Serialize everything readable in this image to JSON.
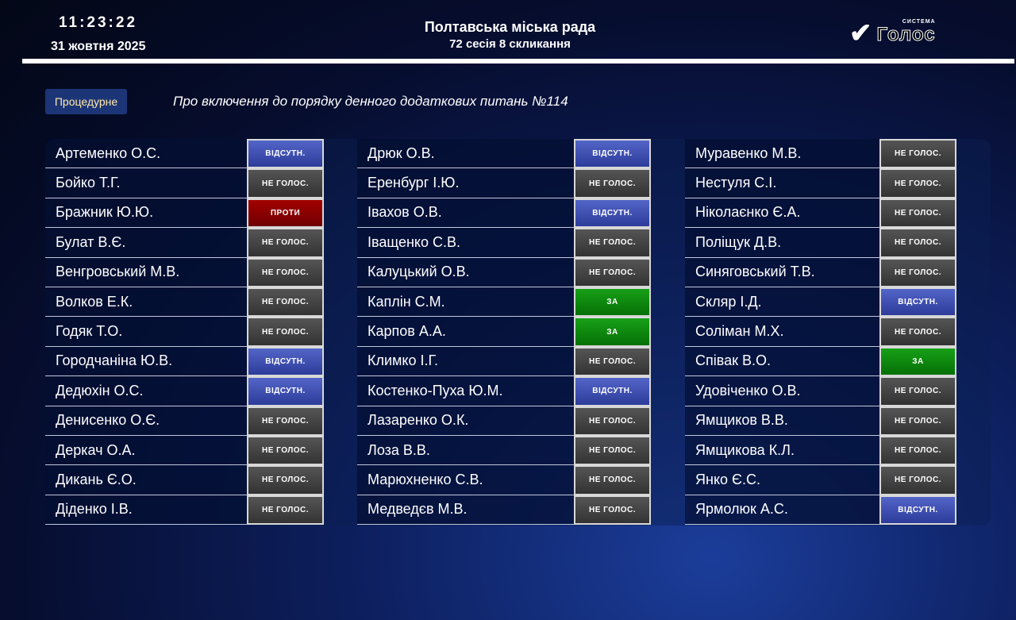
{
  "header": {
    "time": "11:23:22",
    "date": "31 жовтня 2025",
    "title": "Полтавська міська рада",
    "subtitle": "72 сесія 8 скликання",
    "logo_text": "Голос",
    "logo_small": "СИСТЕМА"
  },
  "question": {
    "type": "Процедурне",
    "text": "Про включення до порядку денного додаткових питань №114"
  },
  "vote_labels": {
    "absent": "ВІДСУТН.",
    "nv": "НЕ ГОЛОС.",
    "against": "ПРОТИ",
    "for": "ЗА"
  },
  "status_colors": {
    "absent": "#3b4fb0",
    "nv": "#444444",
    "against": "#8b0000",
    "for": "#0a8a0a"
  },
  "columns": [
    [
      [
        "Артеменко О.С.",
        "absent"
      ],
      [
        "Бойко Т.Г.",
        "nv"
      ],
      [
        "Бражник Ю.Ю.",
        "against"
      ],
      [
        "Булат В.Є.",
        "nv"
      ],
      [
        "Венгровський М.В.",
        "nv"
      ],
      [
        "Волков Е.К.",
        "nv"
      ],
      [
        "Годяк Т.О.",
        "nv"
      ],
      [
        "Городчаніна Ю.В.",
        "absent"
      ],
      [
        "Дедюхін О.С.",
        "absent"
      ],
      [
        "Денисенко О.Є.",
        "nv"
      ],
      [
        "Деркач О.А.",
        "nv"
      ],
      [
        "Дикань Є.О.",
        "nv"
      ],
      [
        "Діденко І.В.",
        "nv"
      ]
    ],
    [
      [
        "Дрюк О.В.",
        "absent"
      ],
      [
        "Еренбург І.Ю.",
        "nv"
      ],
      [
        "Івахов О.В.",
        "absent"
      ],
      [
        "Іващенко С.В.",
        "nv"
      ],
      [
        "Калуцький О.В.",
        "nv"
      ],
      [
        "Каплін С.М.",
        "for"
      ],
      [
        "Карпов А.А.",
        "for"
      ],
      [
        "Климко І.Г.",
        "nv"
      ],
      [
        "Костенко-Пуха Ю.М.",
        "absent"
      ],
      [
        "Лазаренко О.К.",
        "nv"
      ],
      [
        "Лоза В.В.",
        "nv"
      ],
      [
        "Марюхненко С.В.",
        "nv"
      ],
      [
        "Медведєв М.В.",
        "nv"
      ]
    ],
    [
      [
        "Муравенко М.В.",
        "nv"
      ],
      [
        "Нестуля С.І.",
        "nv"
      ],
      [
        "Ніколаєнко Є.А.",
        "nv"
      ],
      [
        "Поліщук Д.В.",
        "nv"
      ],
      [
        "Синяговський Т.В.",
        "nv"
      ],
      [
        "Скляр І.Д.",
        "absent"
      ],
      [
        "Соліман М.Х.",
        "nv"
      ],
      [
        "Співак В.О.",
        "for"
      ],
      [
        "Удовіченко О.В.",
        "nv"
      ],
      [
        "Ямщиков В.В.",
        "nv"
      ],
      [
        "Ямщикова К.Л.",
        "nv"
      ],
      [
        "Янко Є.С.",
        "nv"
      ],
      [
        "Ярмолюк А.С.",
        "absent"
      ]
    ]
  ]
}
